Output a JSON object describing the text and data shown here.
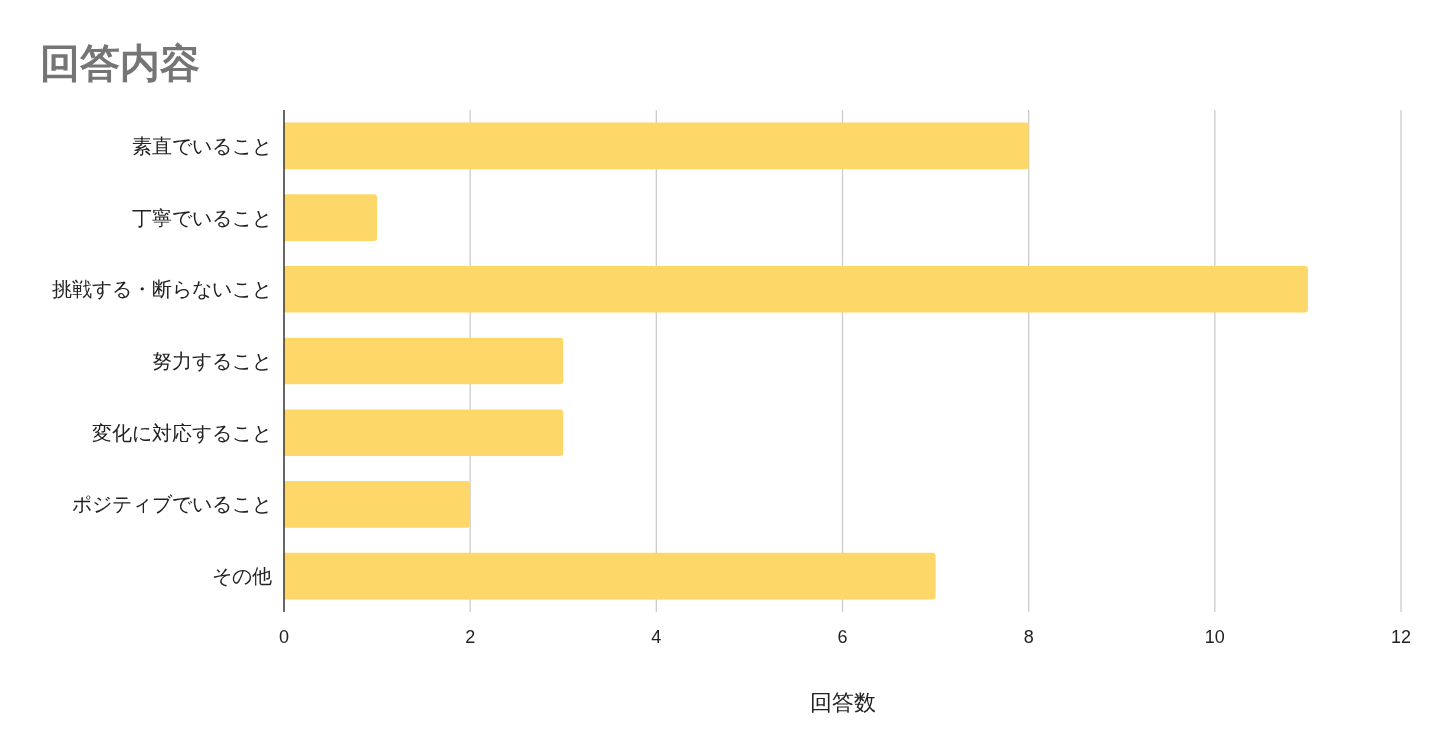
{
  "chart_data": {
    "type": "bar",
    "orientation": "horizontal",
    "title": "回答内容",
    "xlabel": "回答数",
    "categories": [
      "素直でいること",
      "丁寧でいること",
      "挑戦する・断らないこと",
      "努力すること",
      "変化に対応すること",
      "ポジティブでいること",
      "その他"
    ],
    "values": [
      8,
      1,
      11,
      3,
      3,
      2,
      7
    ],
    "color": "#fdd868",
    "xlim": [
      0,
      12
    ],
    "xticks": [
      0,
      2,
      4,
      6,
      8,
      10,
      12
    ],
    "grid": "x"
  }
}
